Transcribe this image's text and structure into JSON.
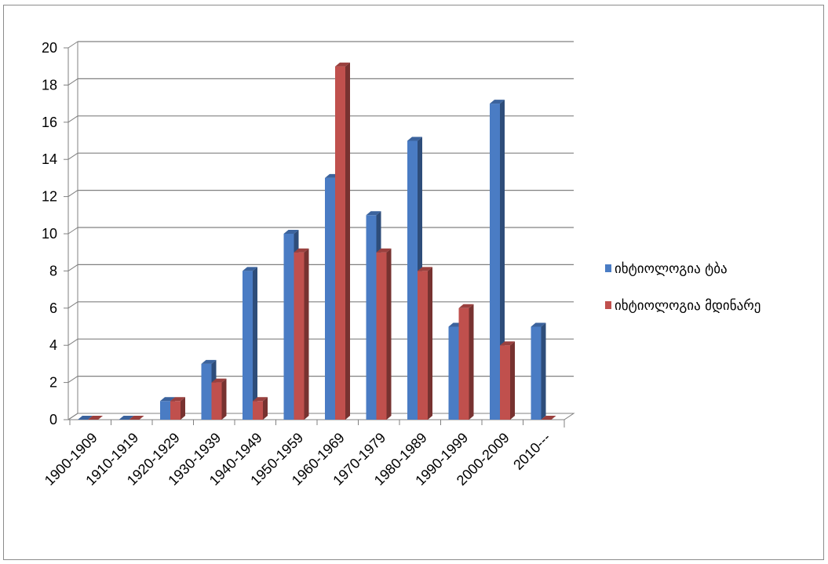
{
  "chart_data": {
    "type": "bar",
    "title": "",
    "xlabel": "",
    "ylabel": "",
    "categories": [
      "1900-1909",
      "1910-1919",
      "1920-1929",
      "1930-1939",
      "1940-1949",
      "1950-1959",
      "1960-1969",
      "1970-1979",
      "1980-1989",
      "1990-1999",
      "2000-2009",
      "2010---"
    ],
    "series": [
      {
        "name": "იხტიოლოგია ტბა",
        "color": "#4a7cc4",
        "values": [
          0,
          0,
          1,
          3,
          8,
          10,
          13,
          11,
          15,
          5,
          17,
          5
        ]
      },
      {
        "name": "იხტიოლოგია მდინარე",
        "color": "#c0504d",
        "values": [
          0,
          0,
          1,
          2,
          1,
          9,
          19,
          9,
          8,
          6,
          4,
          0
        ]
      }
    ],
    "ylim": [
      0,
      20
    ],
    "yticks": [
      0,
      2,
      4,
      6,
      8,
      10,
      12,
      14,
      16,
      18,
      20
    ],
    "grid": true,
    "legend_position": "right",
    "style": "3d-clustered-column"
  }
}
